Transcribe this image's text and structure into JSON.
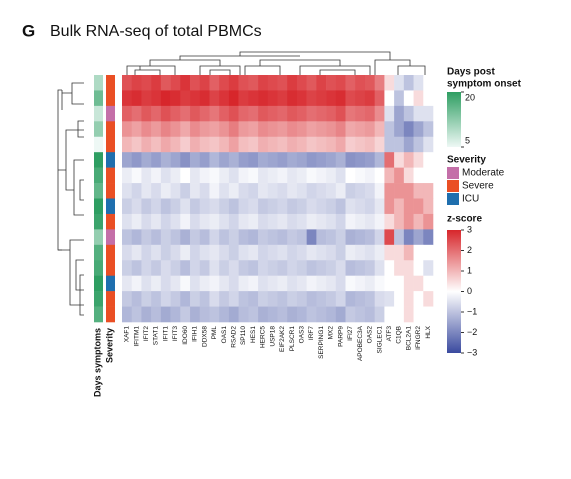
{
  "chart_data": {
    "type": "heatmap",
    "panel_label": "G",
    "title": "Bulk RNA-seq of total PBMCs",
    "columns": [
      "XAF1",
      "IFITM1",
      "IFIT2",
      "STAT1",
      "IFIT1",
      "IFIT3",
      "IDO60",
      "IFIH1",
      "DDX58",
      "PML",
      "OAS1",
      "RSAD2",
      "SP110",
      "HES1",
      "HERC5",
      "USP18",
      "EIF2AK2",
      "PLSCR1",
      "OAS3",
      "IRF7",
      "SERPING1",
      "MX2",
      "PARP9",
      "IFI27",
      "APOBEC3A",
      "OAS2",
      "SIGLEC1",
      "ATF3",
      "C1QB",
      "BCL2A1",
      "IFNGR2",
      "HLX"
    ],
    "values": [
      [
        2.4,
        2.6,
        2.5,
        2.7,
        2.3,
        2.5,
        2.8,
        2.4,
        2.6,
        2.2,
        2.5,
        2.7,
        2.4,
        2.3,
        2.6,
        2.5,
        2.4,
        2.7,
        2.5,
        2.3,
        2.6,
        2.4,
        2.5,
        2.2,
        2.4,
        2.3,
        1.8,
        0.5,
        -0.5,
        -1.0,
        -0.5,
        0
      ],
      [
        2.8,
        2.9,
        2.7,
        2.8,
        3.0,
        2.9,
        2.7,
        2.8,
        2.9,
        2.6,
        2.8,
        3.0,
        2.7,
        2.8,
        2.9,
        2.8,
        2.7,
        2.9,
        2.8,
        2.6,
        2.7,
        2.8,
        2.9,
        2.5,
        2.6,
        2.7,
        2.2,
        0,
        -1.0,
        0,
        0.5,
        0
      ],
      [
        2.2,
        2.0,
        2.3,
        2.1,
        2.4,
        2.2,
        2.0,
        2.3,
        2.1,
        1.9,
        2.2,
        2.4,
        2.1,
        2.0,
        2.3,
        2.2,
        2.1,
        2.3,
        2.2,
        2.0,
        2.1,
        2.2,
        2.4,
        1.9,
        2.0,
        2.1,
        1.6,
        -0.5,
        -1.5,
        -1.0,
        -0.5,
        -0.5
      ],
      [
        1.5,
        1.3,
        1.6,
        1.4,
        1.7,
        1.5,
        1.2,
        1.6,
        1.4,
        1.3,
        1.5,
        1.8,
        1.4,
        1.3,
        1.6,
        1.5,
        1.4,
        1.6,
        1.5,
        1.3,
        1.4,
        1.5,
        1.7,
        1.2,
        1.3,
        1.4,
        1.0,
        -1.0,
        -1.5,
        -2.0,
        -1.5,
        -1.0
      ],
      [
        1.0,
        0.8,
        1.1,
        0.9,
        1.2,
        1.0,
        0.7,
        1.1,
        0.9,
        0.8,
        1.0,
        1.3,
        0.9,
        0.8,
        1.1,
        1.0,
        0.9,
        1.1,
        1.0,
        0.8,
        0.9,
        1.0,
        1.2,
        0.7,
        0.8,
        0.9,
        0.6,
        -1.0,
        -1.0,
        -1.5,
        -1.0,
        -0.5
      ],
      [
        -1.5,
        -1.7,
        -1.4,
        -1.6,
        -1.3,
        -1.5,
        -1.8,
        -1.4,
        -1.6,
        -1.2,
        -1.5,
        -1.3,
        -1.6,
        -1.7,
        -1.4,
        -1.5,
        -1.6,
        -1.4,
        -1.5,
        -1.7,
        -1.6,
        -1.5,
        -1.3,
        -1.8,
        -1.7,
        -1.6,
        -1.2,
        2.0,
        0.5,
        1.0,
        0.5,
        0
      ],
      [
        -0.3,
        -0.1,
        -0.4,
        -0.2,
        -0.5,
        -0.3,
        0,
        -0.4,
        -0.2,
        -0.1,
        -0.3,
        -0.5,
        -0.2,
        -0.1,
        -0.4,
        -0.3,
        -0.2,
        -0.4,
        -0.3,
        -0.1,
        -0.2,
        -0.3,
        -0.5,
        0,
        -0.1,
        -0.2,
        0,
        1.0,
        1.5,
        0.5,
        0,
        0
      ],
      [
        -0.5,
        -0.7,
        -0.4,
        -0.6,
        -0.3,
        -0.5,
        -0.8,
        -0.4,
        -0.6,
        -0.2,
        -0.5,
        -0.3,
        -0.6,
        -0.7,
        -0.4,
        -0.5,
        -0.6,
        -0.4,
        -0.5,
        -0.7,
        -0.6,
        -0.5,
        -0.3,
        -0.8,
        -0.7,
        -0.6,
        -0.2,
        1.5,
        1.5,
        1.5,
        1.0,
        1.0
      ],
      [
        -0.8,
        -0.6,
        -0.9,
        -0.7,
        -1.0,
        -0.8,
        -0.5,
        -0.9,
        -0.7,
        -0.6,
        -0.8,
        -1.0,
        -0.7,
        -0.6,
        -0.9,
        -0.8,
        -0.7,
        -0.9,
        -0.8,
        -0.6,
        -0.7,
        -0.8,
        -1.0,
        -0.5,
        -0.6,
        -0.7,
        -0.4,
        1.5,
        1.0,
        1.5,
        1.5,
        1.0
      ],
      [
        -0.5,
        -0.3,
        -0.6,
        -0.4,
        -0.7,
        -0.5,
        -0.2,
        -0.6,
        -0.4,
        -0.3,
        -0.5,
        -0.7,
        -0.4,
        -0.3,
        -0.6,
        -0.5,
        -0.4,
        -0.6,
        -0.5,
        -0.3,
        -0.4,
        -0.5,
        -0.7,
        -0.2,
        -0.3,
        -0.4,
        -0.2,
        0.5,
        1.0,
        1.5,
        1.0,
        1.5
      ],
      [
        -1.0,
        -1.2,
        -0.9,
        -1.1,
        -0.8,
        -1.0,
        -1.3,
        -0.9,
        -1.1,
        -0.7,
        -1.0,
        -0.8,
        -1.1,
        -1.2,
        -0.9,
        -1.0,
        -1.1,
        -0.9,
        -1.0,
        -2.0,
        -1.1,
        -1.0,
        -0.8,
        -1.3,
        -1.2,
        -1.1,
        -0.7,
        2.5,
        -1.0,
        -2.0,
        -1.5,
        -2.0
      ],
      [
        -0.6,
        -0.4,
        -0.7,
        -0.5,
        -0.8,
        -0.6,
        -0.3,
        -0.7,
        -0.5,
        -0.4,
        -0.6,
        -0.8,
        -0.5,
        -0.4,
        -0.7,
        -0.6,
        -0.5,
        -0.7,
        -0.6,
        -0.4,
        -0.5,
        -0.6,
        -0.8,
        -0.3,
        -0.4,
        -0.5,
        -0.3,
        0.5,
        0.5,
        1.0,
        0,
        0
      ],
      [
        -0.8,
        -1.0,
        -0.7,
        -0.9,
        -0.6,
        -0.8,
        -1.1,
        -0.7,
        -0.9,
        -0.5,
        -0.8,
        -0.6,
        -0.9,
        -1.0,
        -0.7,
        -0.8,
        -0.9,
        -0.7,
        -0.8,
        -1.0,
        -0.9,
        -0.8,
        -0.6,
        -1.1,
        -1.0,
        -0.9,
        -0.5,
        0,
        0.5,
        0.5,
        0,
        -0.5
      ],
      [
        -0.4,
        -0.2,
        -0.5,
        -0.3,
        -0.6,
        -0.4,
        -0.1,
        -0.5,
        -0.3,
        -0.2,
        -0.4,
        -0.6,
        -0.3,
        -0.2,
        -0.5,
        -0.4,
        -0.3,
        -0.5,
        -0.4,
        -0.2,
        -0.3,
        -0.4,
        -0.6,
        -0.1,
        -0.2,
        -0.3,
        -0.1,
        0,
        0,
        0.5,
        0.5,
        0
      ],
      [
        -0.9,
        -1.1,
        -0.8,
        -1.0,
        -0.7,
        -0.9,
        -1.2,
        -0.8,
        -1.0,
        -0.6,
        -0.9,
        -0.7,
        -1.0,
        -1.1,
        -0.8,
        -0.9,
        -1.0,
        -0.8,
        -0.9,
        -1.1,
        -1.0,
        -0.9,
        -0.7,
        -1.2,
        -1.1,
        -1.0,
        -0.6,
        -0.5,
        0,
        0.5,
        0,
        0.5
      ],
      [
        -1.2,
        -1.0,
        -1.3,
        -1.1,
        -1.4,
        -1.2,
        -0.9,
        -1.3,
        -1.1,
        -1.0,
        -1.2,
        -1.4,
        -1.1,
        -1.0,
        -1.3,
        -1.2,
        -1.1,
        -1.3,
        -1.2,
        -1.0,
        -1.1,
        -1.2,
        -1.4,
        -0.9,
        -1.0,
        -1.1,
        -0.8,
        0,
        0,
        0.5,
        0,
        0
      ]
    ],
    "zlim": [
      -3,
      3
    ],
    "zticks": [
      3,
      2,
      1,
      0,
      {
        "value": -1,
        "label": "−1"
      },
      {
        "value": -2,
        "label": "−2"
      },
      {
        "value": -3,
        "label": "−3"
      }
    ],
    "zcolors": [
      "#3a4a9f",
      "#ffffff",
      "#d7262b"
    ],
    "z_title": "z-score",
    "days": {
      "label": "Days symptoms",
      "title_lines": [
        "Days post",
        "symptom onset"
      ],
      "values": [
        10,
        15,
        8,
        12,
        5,
        20,
        18,
        16,
        20,
        19,
        12,
        17,
        18,
        20,
        19,
        17
      ],
      "lim": [
        5,
        20
      ],
      "ticks": [
        20,
        5
      ],
      "colors": [
        "#eef8f5",
        "#2e9e62"
      ]
    },
    "severity": {
      "label": "Severity",
      "title": "Severity",
      "levels": [
        {
          "name": "Moderate",
          "color": "#c46fa8"
        },
        {
          "name": "Severe",
          "color": "#ea4f24"
        },
        {
          "name": "ICU",
          "color": "#1f6fae"
        }
      ],
      "values": [
        "Severe",
        "Severe",
        "Moderate",
        "Severe",
        "Severe",
        "ICU",
        "Severe",
        "Severe",
        "ICU",
        "Severe",
        "Moderate",
        "Severe",
        "Severe",
        "ICU",
        "Severe",
        "Severe"
      ]
    }
  }
}
